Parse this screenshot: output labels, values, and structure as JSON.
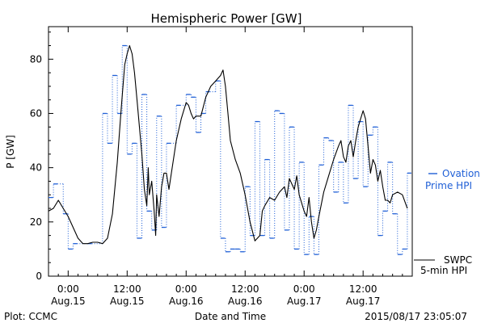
{
  "chart_data": {
    "type": "line",
    "title": "Hemispheric Power [GW]",
    "xlabel": "Date and Time",
    "ylabel": "P [GW]",
    "ylim": [
      0,
      92
    ],
    "yticks": [
      0,
      20,
      40,
      60,
      80
    ],
    "xlim_hours": [
      -4,
      70
    ],
    "x_ticks": [
      {
        "hour": 0,
        "time": "0:00",
        "date": "Aug.15"
      },
      {
        "hour": 12,
        "time": "12:00",
        "date": "Aug.15"
      },
      {
        "hour": 24,
        "time": "0:00",
        "date": "Aug.16"
      },
      {
        "hour": 36,
        "time": "12:00",
        "date": "Aug.16"
      },
      {
        "hour": 48,
        "time": "0:00",
        "date": "Aug.17"
      },
      {
        "hour": 60,
        "time": "12:00",
        "date": "Aug.17"
      }
    ],
    "grid": false,
    "series": [
      {
        "name": "SWPC 5-min HPI",
        "color": "#000000",
        "style": "solid",
        "points": [
          [
            -4,
            24
          ],
          [
            -3,
            25
          ],
          [
            -2,
            28
          ],
          [
            -1,
            25
          ],
          [
            0,
            22
          ],
          [
            1,
            18
          ],
          [
            2,
            14
          ],
          [
            3,
            12
          ],
          [
            4,
            12
          ],
          [
            5,
            12.5
          ],
          [
            6,
            12.5
          ],
          [
            7,
            12
          ],
          [
            8,
            14
          ],
          [
            9,
            23
          ],
          [
            10,
            42
          ],
          [
            10.8,
            62
          ],
          [
            11.5,
            78
          ],
          [
            12,
            82
          ],
          [
            12.5,
            85
          ],
          [
            13,
            82
          ],
          [
            13.5,
            75
          ],
          [
            14,
            65
          ],
          [
            14.5,
            55
          ],
          [
            15,
            45
          ],
          [
            15.5,
            32
          ],
          [
            16,
            26
          ],
          [
            16.3,
            40
          ],
          [
            16.5,
            30
          ],
          [
            17,
            35
          ],
          [
            17.5,
            24
          ],
          [
            17.8,
            15
          ],
          [
            18,
            30
          ],
          [
            18.5,
            22
          ],
          [
            19,
            33
          ],
          [
            19.5,
            38
          ],
          [
            20,
            38
          ],
          [
            20.5,
            32
          ],
          [
            21,
            38
          ],
          [
            22,
            50
          ],
          [
            23,
            58
          ],
          [
            24,
            64
          ],
          [
            24.5,
            63
          ],
          [
            25,
            60
          ],
          [
            25.5,
            58
          ],
          [
            26,
            59
          ],
          [
            27,
            59
          ],
          [
            28,
            66
          ],
          [
            29,
            70
          ],
          [
            30,
            72
          ],
          [
            31,
            74
          ],
          [
            31.5,
            76
          ],
          [
            32,
            70
          ],
          [
            32.5,
            60
          ],
          [
            33,
            50
          ],
          [
            34,
            43
          ],
          [
            35,
            38
          ],
          [
            36,
            30
          ],
          [
            37,
            20
          ],
          [
            38,
            13
          ],
          [
            39,
            15
          ],
          [
            39.5,
            24
          ],
          [
            40,
            26
          ],
          [
            41,
            29
          ],
          [
            42,
            28
          ],
          [
            43,
            31
          ],
          [
            44,
            33
          ],
          [
            44.5,
            29
          ],
          [
            45,
            36
          ],
          [
            46,
            32
          ],
          [
            46.5,
            37
          ],
          [
            47,
            30
          ],
          [
            48,
            24
          ],
          [
            48.5,
            22
          ],
          [
            49,
            29
          ],
          [
            49.5,
            20
          ],
          [
            50,
            14
          ],
          [
            50.5,
            17
          ],
          [
            51,
            22
          ],
          [
            52,
            31
          ],
          [
            53,
            37
          ],
          [
            54,
            43
          ],
          [
            55,
            48
          ],
          [
            55.5,
            50
          ],
          [
            56,
            44
          ],
          [
            56.5,
            42
          ],
          [
            57,
            48
          ],
          [
            57.5,
            50
          ],
          [
            58,
            44
          ],
          [
            58.5,
            50
          ],
          [
            59,
            55
          ],
          [
            59.5,
            58
          ],
          [
            60,
            61
          ],
          [
            60.5,
            58
          ],
          [
            61,
            48
          ],
          [
            61.5,
            38
          ],
          [
            62,
            43
          ],
          [
            62.5,
            41
          ],
          [
            63,
            35
          ],
          [
            63.5,
            39
          ],
          [
            64,
            33
          ],
          [
            64.5,
            28
          ],
          [
            65,
            28
          ],
          [
            65.5,
            27
          ],
          [
            66,
            30
          ],
          [
            67,
            31
          ],
          [
            68,
            30
          ],
          [
            69,
            25
          ]
        ]
      },
      {
        "name": "Ovation Prime HPI",
        "color": "#1f5fd6",
        "style": "stepped-dotted",
        "points": [
          [
            -4,
            29
          ],
          [
            -3,
            34
          ],
          [
            -1,
            23
          ],
          [
            0,
            10
          ],
          [
            1,
            12
          ],
          [
            4,
            12
          ],
          [
            7,
            60
          ],
          [
            8,
            49
          ],
          [
            9,
            74
          ],
          [
            10,
            60
          ],
          [
            11,
            85
          ],
          [
            12,
            45
          ],
          [
            13,
            49
          ],
          [
            14,
            14
          ],
          [
            15,
            67
          ],
          [
            16,
            24
          ],
          [
            17,
            17
          ],
          [
            18,
            59
          ],
          [
            19,
            18
          ],
          [
            20,
            49
          ],
          [
            22,
            63
          ],
          [
            24,
            67
          ],
          [
            25,
            66
          ],
          [
            26,
            53
          ],
          [
            27,
            60
          ],
          [
            28,
            68
          ],
          [
            30,
            72
          ],
          [
            31,
            14
          ],
          [
            32,
            9
          ],
          [
            33,
            10
          ],
          [
            34,
            10
          ],
          [
            35,
            9
          ],
          [
            36,
            33
          ],
          [
            37,
            15
          ],
          [
            38,
            57
          ],
          [
            39,
            15
          ],
          [
            40,
            43
          ],
          [
            41,
            14
          ],
          [
            42,
            61
          ],
          [
            43,
            60
          ],
          [
            44,
            17
          ],
          [
            45,
            55
          ],
          [
            46,
            10
          ],
          [
            47,
            42
          ],
          [
            48,
            8
          ],
          [
            49,
            22
          ],
          [
            50,
            8
          ],
          [
            51,
            41
          ],
          [
            52,
            51
          ],
          [
            53,
            50
          ],
          [
            54,
            31
          ],
          [
            55,
            42
          ],
          [
            56,
            27
          ],
          [
            57,
            63
          ],
          [
            58,
            36
          ],
          [
            59,
            57
          ],
          [
            60,
            33
          ],
          [
            61,
            52
          ],
          [
            62,
            55
          ],
          [
            63,
            15
          ],
          [
            64,
            24
          ],
          [
            65,
            42
          ],
          [
            66,
            23
          ],
          [
            67,
            8
          ],
          [
            68,
            10
          ],
          [
            69,
            38
          ]
        ]
      }
    ],
    "legend": [
      {
        "series": "Ovation Prime HPI",
        "lines": [
          "Ovation",
          "Prime HPI"
        ],
        "color": "#1f5fd6",
        "placement": "right"
      },
      {
        "series": "SWPC 5-min HPI",
        "lines": [
          "SWPC",
          "5-min HPI"
        ],
        "color": "#000000",
        "placement": "right"
      }
    ]
  },
  "footer": {
    "left": "Plot: CCMC",
    "center": "Date and Time",
    "right": "2015/08/17 23:05:07"
  }
}
